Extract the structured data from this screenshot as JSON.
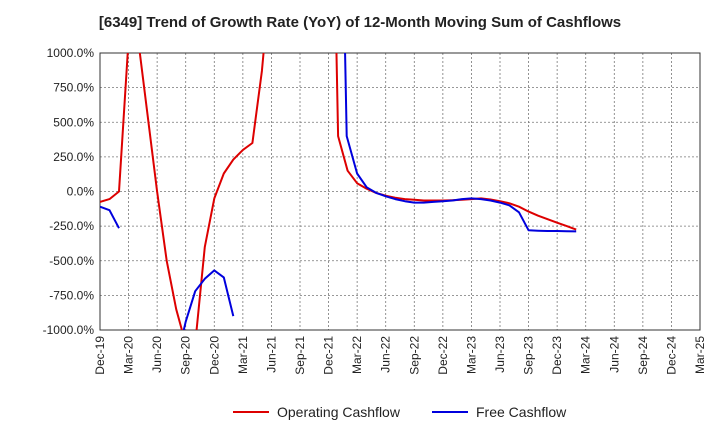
{
  "chart_data": {
    "type": "line",
    "title": "[6349]  Trend of Growth Rate (YoY) of 12-Month Moving Sum of Cashflows",
    "xlabel": "",
    "ylabel": "",
    "ylim": [
      -1000,
      1000
    ],
    "y_ticks": [
      "1000.0%",
      "750.0%",
      "500.0%",
      "250.0%",
      "0.0%",
      "-250.0%",
      "-500.0%",
      "-750.0%",
      "-1000.0%"
    ],
    "y_tick_values": [
      1000,
      750,
      500,
      250,
      0,
      -250,
      -500,
      -750,
      -1000
    ],
    "x": [
      "Dec-19",
      "Mar-20",
      "Jun-20",
      "Sep-20",
      "Dec-20",
      "Mar-21",
      "Jun-21",
      "Sep-21",
      "Dec-21",
      "Mar-22",
      "Jun-22",
      "Sep-22",
      "Dec-22",
      "Mar-23",
      "Jun-23",
      "Sep-23",
      "Dec-23",
      "Mar-24",
      "Jun-24",
      "Sep-24",
      "Dec-24",
      "Mar-25"
    ],
    "grid": true,
    "legend_position": "bottom",
    "series": [
      {
        "name": "Operating Cashflow",
        "color": "#dd0000",
        "points": [
          [
            0,
            -75
          ],
          [
            1,
            -55
          ],
          [
            2,
            0
          ],
          [
            3,
            1100
          ],
          [
            4,
            1100
          ],
          [
            5,
            550
          ],
          [
            6,
            0
          ],
          [
            7,
            -500
          ],
          [
            8,
            -850
          ],
          [
            9,
            -1100
          ],
          [
            10,
            -1100
          ],
          [
            11,
            -400
          ],
          [
            12,
            -50
          ],
          [
            13,
            130
          ],
          [
            14,
            230
          ],
          [
            15,
            300
          ],
          [
            16,
            350
          ],
          [
            17,
            870
          ],
          [
            17.3,
            1100
          ],
          null,
          [
            24.8,
            1100
          ],
          [
            25,
            400
          ],
          [
            26,
            150
          ],
          [
            27,
            60
          ],
          [
            28,
            20
          ],
          [
            29,
            -10
          ],
          [
            30,
            -30
          ],
          [
            31,
            -45
          ],
          [
            32,
            -55
          ],
          [
            33,
            -60
          ],
          [
            34,
            -65
          ],
          [
            35,
            -65
          ],
          [
            36,
            -65
          ],
          [
            37,
            -63
          ],
          [
            38,
            -60
          ],
          [
            39,
            -55
          ],
          [
            40,
            -50
          ],
          [
            41,
            -58
          ],
          [
            42,
            -70
          ],
          [
            43,
            -85
          ],
          [
            44,
            -110
          ],
          [
            45,
            -145
          ],
          [
            46,
            -175
          ],
          [
            47,
            -200
          ],
          [
            48,
            -225
          ],
          [
            49,
            -250
          ],
          [
            50,
            -275
          ]
        ]
      },
      {
        "name": "Free Cashflow",
        "color": "#0000dd",
        "points": [
          [
            0,
            -110
          ],
          [
            1,
            -135
          ],
          [
            2,
            -265
          ],
          null,
          [
            8.8,
            -1000
          ],
          [
            9,
            -940
          ],
          [
            10,
            -720
          ],
          [
            11,
            -630
          ],
          [
            12,
            -570
          ],
          [
            13,
            -620
          ],
          [
            14,
            -900
          ],
          null,
          [
            25.7,
            1100
          ],
          [
            25.9,
            400
          ],
          [
            27,
            130
          ],
          [
            28,
            30
          ],
          [
            29,
            -10
          ],
          [
            30,
            -35
          ],
          [
            31,
            -55
          ],
          [
            32,
            -70
          ],
          [
            33,
            -80
          ],
          [
            34,
            -80
          ],
          [
            35,
            -75
          ],
          [
            36,
            -70
          ],
          [
            37,
            -65
          ],
          [
            38,
            -55
          ],
          [
            39,
            -50
          ],
          [
            40,
            -55
          ],
          [
            41,
            -65
          ],
          [
            42,
            -80
          ],
          [
            43,
            -100
          ],
          [
            44,
            -150
          ],
          [
            45,
            -280
          ],
          [
            46,
            -283
          ],
          [
            47,
            -285
          ],
          [
            48,
            -285
          ],
          [
            49,
            -287
          ],
          [
            50,
            -288
          ]
        ]
      }
    ]
  }
}
